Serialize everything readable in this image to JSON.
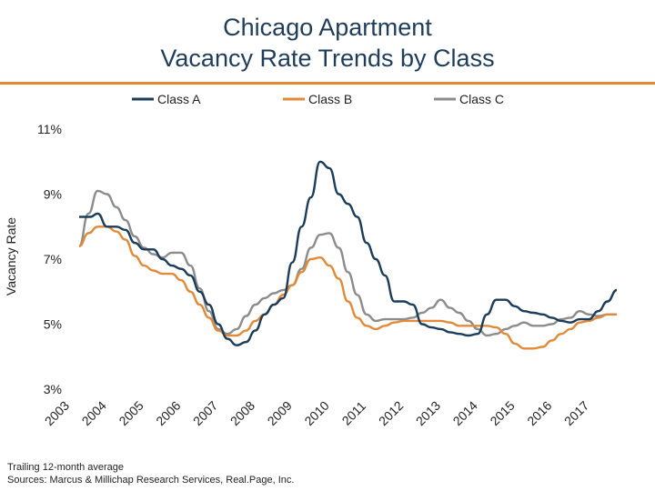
{
  "header": {
    "title_line1": "Chicago Apartment",
    "title_line2": "Vacancy Rate Trends by Class"
  },
  "footer": {
    "note": "Trailing 12-month average",
    "sources": "Sources: Marcus & Millichap Research Services, Real.Page, Inc."
  },
  "colors": {
    "title": "#1f3c5a",
    "rule": "#e08a2f",
    "class_a": "#1c3d5a",
    "class_b": "#e08a3a",
    "class_c": "#8c8c8c"
  },
  "chart_data": {
    "type": "line",
    "ylabel": "Vacancy Rate",
    "ylim": [
      3,
      11
    ],
    "yticks": [
      3,
      5,
      7,
      9,
      11
    ],
    "ytick_labels": [
      "3%",
      "5%",
      "7%",
      "9%",
      "11%"
    ],
    "xlim": [
      2003.0,
      2017.0
    ],
    "xtick_labels": [
      "2003",
      "2004",
      "2005",
      "2006",
      "2007",
      "2008",
      "2009",
      "2010",
      "2011",
      "2012",
      "2013",
      "2014",
      "2015",
      "2016",
      "2017"
    ],
    "legend_position": "top",
    "grid": false,
    "series": [
      {
        "name": "Class A",
        "color": "#1c3d5a",
        "points": [
          [
            2003.0,
            8.3
          ],
          [
            2003.3,
            8.3
          ],
          [
            2003.5,
            8.4
          ],
          [
            2003.75,
            8.0
          ],
          [
            2004.0,
            8.0
          ],
          [
            2004.25,
            7.9
          ],
          [
            2004.5,
            7.5
          ],
          [
            2004.75,
            7.3
          ],
          [
            2005.0,
            7.3
          ],
          [
            2005.25,
            7.0
          ],
          [
            2005.5,
            6.8
          ],
          [
            2005.75,
            6.7
          ],
          [
            2006.0,
            6.5
          ],
          [
            2006.25,
            6.0
          ],
          [
            2006.5,
            5.6
          ],
          [
            2006.75,
            5.0
          ],
          [
            2007.0,
            4.55
          ],
          [
            2007.25,
            4.35
          ],
          [
            2007.5,
            4.45
          ],
          [
            2007.75,
            4.8
          ],
          [
            2008.0,
            5.3
          ],
          [
            2008.25,
            5.6
          ],
          [
            2008.5,
            5.8
          ],
          [
            2008.75,
            6.9
          ],
          [
            2009.0,
            8.0
          ],
          [
            2009.25,
            8.9
          ],
          [
            2009.5,
            10.0
          ],
          [
            2009.75,
            9.8
          ],
          [
            2010.0,
            9.0
          ],
          [
            2010.25,
            8.7
          ],
          [
            2010.5,
            8.3
          ],
          [
            2010.75,
            7.5
          ],
          [
            2011.0,
            7.0
          ],
          [
            2011.25,
            6.5
          ],
          [
            2011.5,
            5.7
          ],
          [
            2011.75,
            5.7
          ],
          [
            2012.0,
            5.6
          ],
          [
            2012.25,
            5.0
          ],
          [
            2012.5,
            4.9
          ],
          [
            2012.75,
            4.85
          ],
          [
            2013.0,
            4.75
          ],
          [
            2013.25,
            4.7
          ],
          [
            2013.5,
            4.65
          ],
          [
            2013.75,
            4.7
          ],
          [
            2014.0,
            5.3
          ],
          [
            2014.25,
            5.75
          ],
          [
            2014.5,
            5.75
          ],
          [
            2014.75,
            5.55
          ],
          [
            2015.0,
            5.4
          ],
          [
            2015.25,
            5.35
          ],
          [
            2015.5,
            5.3
          ],
          [
            2015.75,
            5.2
          ],
          [
            2016.0,
            5.1
          ],
          [
            2016.25,
            5.05
          ],
          [
            2016.5,
            5.15
          ],
          [
            2016.75,
            5.15
          ],
          [
            2017.0,
            5.4
          ],
          [
            2017.25,
            5.7
          ],
          [
            2017.5,
            6.05
          ]
        ]
      },
      {
        "name": "Class B",
        "color": "#e08a3a",
        "points": [
          [
            2003.0,
            7.4
          ],
          [
            2003.25,
            7.8
          ],
          [
            2003.5,
            8.0
          ],
          [
            2003.75,
            8.0
          ],
          [
            2004.0,
            7.85
          ],
          [
            2004.25,
            7.6
          ],
          [
            2004.5,
            7.1
          ],
          [
            2004.75,
            6.8
          ],
          [
            2005.0,
            6.65
          ],
          [
            2005.25,
            6.55
          ],
          [
            2005.5,
            6.55
          ],
          [
            2005.75,
            6.35
          ],
          [
            2006.0,
            6.0
          ],
          [
            2006.25,
            5.6
          ],
          [
            2006.5,
            5.2
          ],
          [
            2006.75,
            4.8
          ],
          [
            2007.0,
            4.65
          ],
          [
            2007.25,
            4.65
          ],
          [
            2007.5,
            4.8
          ],
          [
            2007.75,
            5.1
          ],
          [
            2008.0,
            5.3
          ],
          [
            2008.25,
            5.6
          ],
          [
            2008.5,
            5.9
          ],
          [
            2008.75,
            6.2
          ],
          [
            2009.0,
            6.6
          ],
          [
            2009.25,
            7.0
          ],
          [
            2009.5,
            7.05
          ],
          [
            2009.75,
            6.8
          ],
          [
            2010.0,
            6.4
          ],
          [
            2010.25,
            5.7
          ],
          [
            2010.5,
            5.2
          ],
          [
            2010.75,
            4.95
          ],
          [
            2011.0,
            4.85
          ],
          [
            2011.25,
            4.95
          ],
          [
            2011.5,
            5.05
          ],
          [
            2011.75,
            5.1
          ],
          [
            2012.0,
            5.1
          ],
          [
            2012.25,
            5.1
          ],
          [
            2012.5,
            5.1
          ],
          [
            2012.75,
            5.1
          ],
          [
            2013.0,
            5.05
          ],
          [
            2013.25,
            4.95
          ],
          [
            2013.5,
            4.95
          ],
          [
            2013.75,
            4.95
          ],
          [
            2014.0,
            4.95
          ],
          [
            2014.25,
            4.9
          ],
          [
            2014.5,
            4.7
          ],
          [
            2014.75,
            4.4
          ],
          [
            2015.0,
            4.25
          ],
          [
            2015.25,
            4.25
          ],
          [
            2015.5,
            4.3
          ],
          [
            2015.75,
            4.5
          ],
          [
            2016.0,
            4.7
          ],
          [
            2016.25,
            4.85
          ],
          [
            2016.5,
            5.05
          ],
          [
            2016.75,
            5.1
          ],
          [
            2017.0,
            5.2
          ],
          [
            2017.25,
            5.3
          ],
          [
            2017.5,
            5.3
          ]
        ]
      },
      {
        "name": "Class C",
        "color": "#8c8c8c",
        "points": [
          [
            2003.0,
            7.4
          ],
          [
            2003.25,
            8.4
          ],
          [
            2003.5,
            9.1
          ],
          [
            2003.75,
            9.0
          ],
          [
            2004.0,
            8.6
          ],
          [
            2004.25,
            8.2
          ],
          [
            2004.5,
            7.7
          ],
          [
            2004.75,
            7.35
          ],
          [
            2005.0,
            7.15
          ],
          [
            2005.25,
            7.05
          ],
          [
            2005.5,
            7.2
          ],
          [
            2005.75,
            7.2
          ],
          [
            2006.0,
            6.8
          ],
          [
            2006.25,
            6.1
          ],
          [
            2006.5,
            5.4
          ],
          [
            2006.75,
            4.85
          ],
          [
            2007.0,
            4.7
          ],
          [
            2007.25,
            4.85
          ],
          [
            2007.5,
            5.25
          ],
          [
            2007.75,
            5.6
          ],
          [
            2008.0,
            5.8
          ],
          [
            2008.25,
            5.95
          ],
          [
            2008.5,
            6.05
          ],
          [
            2008.75,
            6.2
          ],
          [
            2009.0,
            6.7
          ],
          [
            2009.25,
            7.35
          ],
          [
            2009.5,
            7.75
          ],
          [
            2009.75,
            7.8
          ],
          [
            2010.0,
            7.35
          ],
          [
            2010.25,
            6.6
          ],
          [
            2010.5,
            5.9
          ],
          [
            2010.75,
            5.3
          ],
          [
            2011.0,
            5.1
          ],
          [
            2011.25,
            5.15
          ],
          [
            2011.5,
            5.15
          ],
          [
            2011.75,
            5.15
          ],
          [
            2012.0,
            5.2
          ],
          [
            2012.25,
            5.35
          ],
          [
            2012.5,
            5.5
          ],
          [
            2012.75,
            5.75
          ],
          [
            2013.0,
            5.5
          ],
          [
            2013.25,
            5.35
          ],
          [
            2013.5,
            5.1
          ],
          [
            2013.75,
            4.85
          ],
          [
            2014.0,
            4.65
          ],
          [
            2014.25,
            4.7
          ],
          [
            2014.5,
            4.85
          ],
          [
            2014.75,
            4.95
          ],
          [
            2015.0,
            5.05
          ],
          [
            2015.25,
            4.95
          ],
          [
            2015.5,
            4.95
          ],
          [
            2015.75,
            5.0
          ],
          [
            2016.0,
            5.15
          ],
          [
            2016.25,
            5.2
          ],
          [
            2016.5,
            5.4
          ],
          [
            2016.75,
            5.3
          ],
          [
            2017.0,
            5.25
          ],
          [
            2017.25,
            5.3
          ],
          [
            2017.5,
            5.3
          ]
        ]
      }
    ]
  }
}
